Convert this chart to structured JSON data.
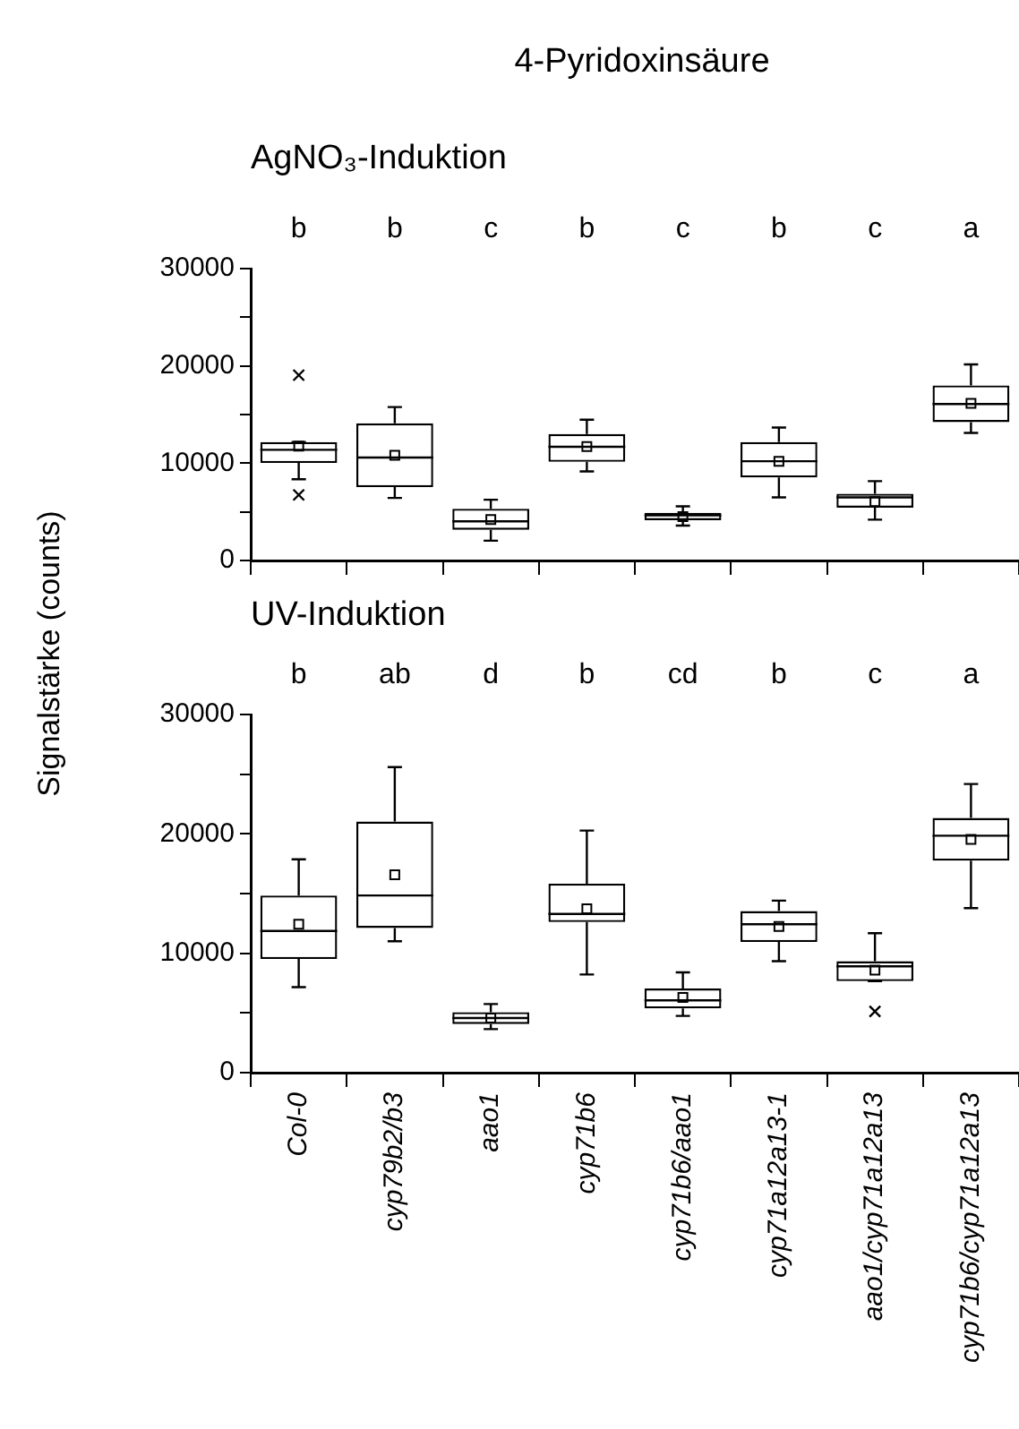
{
  "chart_data": [
    {
      "type": "box",
      "title": "4-Pyridoxinsäure",
      "subtitle": "AgNO₃-Induktion",
      "ylabel": "Signalstärke (counts)",
      "categories": [
        null,
        null,
        null,
        null,
        null,
        null,
        null,
        null
      ],
      "tick_labels": "y",
      "grid": false,
      "legend": false,
      "ylim": [
        0,
        30000
      ],
      "yticks": [
        0,
        {
          "value": 5000,
          "label": null
        },
        10000,
        {
          "value": 15000,
          "label": null
        },
        20000,
        {
          "value": 25000,
          "label": null
        },
        30000
      ],
      "boxes": [
        {
          "low": 8350,
          "q1": 10020,
          "median": 11380,
          "q3": 12180,
          "high": 12180,
          "mean": 11750,
          "outliers": [
            19050,
            6740
          ]
        },
        {
          "low": 6430,
          "q1": 7540,
          "median": 10580,
          "q3": 14100,
          "high": 15770,
          "mean": 10820
        },
        {
          "low": 2040,
          "q1": 3150,
          "median": 4020,
          "q3": 5320,
          "high": 6250,
          "mean": 4200
        },
        {
          "low": 9150,
          "q1": 10140,
          "median": 11690,
          "q3": 12990,
          "high": 14470,
          "mean": 11700
        },
        {
          "low": 3590,
          "q1": 4140,
          "median": 4640,
          "q3": 4890,
          "high": 5570,
          "mean": 4510
        },
        {
          "low": 6490,
          "q1": 8530,
          "median": 10200,
          "q3": 12180,
          "high": 13670,
          "mean": 10200
        },
        {
          "low": 4200,
          "q1": 5440,
          "median": 6490,
          "q3": 6860,
          "high": 8160,
          "mean": 6060
        },
        {
          "low": 13110,
          "q1": 14220,
          "median": 16080,
          "q3": 18000,
          "high": 20160,
          "mean": 16140
        }
      ],
      "annotations": [
        "b",
        "b",
        "c",
        "b",
        "c",
        "b",
        "c",
        "a"
      ]
    },
    {
      "type": "box",
      "title": "UV-Induktion",
      "categories": [
        "Col-0",
        "cyp79b2/b3",
        "aao1",
        "cyp71b6",
        "cyp71b6/aao1",
        "cyp71a12a13-1",
        "aao1/cyp71a12a13",
        "cyp71b6/cyp71a12a13"
      ],
      "grid": false,
      "legend": false,
      "ylim": [
        0,
        30000
      ],
      "yticks": [
        0,
        {
          "value": 5000,
          "label": null
        },
        10000,
        {
          "value": 15000,
          "label": null
        },
        20000,
        {
          "value": 25000,
          "label": null
        },
        30000
      ],
      "boxes": [
        {
          "low": 7170,
          "q1": 9520,
          "median": 11870,
          "q3": 14840,
          "high": 17870,
          "mean": 12430
        },
        {
          "low": 11010,
          "q1": 12120,
          "median": 14840,
          "q3": 21030,
          "high": 25600,
          "mean": 16570
        },
        {
          "low": 3650,
          "q1": 4080,
          "median": 4580,
          "q3": 5070,
          "high": 5750,
          "mean": 4580
        },
        {
          "low": 8230,
          "q1": 12620,
          "median": 13300,
          "q3": 15830,
          "high": 20280,
          "mean": 13730
        },
        {
          "low": 4760,
          "q1": 5380,
          "median": 6060,
          "q3": 7050,
          "high": 8410,
          "mean": 6310
        },
        {
          "low": 9340,
          "q1": 10950,
          "median": 12430,
          "q3": 13540,
          "high": 14410,
          "mean": 12240
        },
        {
          "low": 7670,
          "q1": 7670,
          "median": 8910,
          "q3": 9340,
          "high": 11690,
          "mean": 8600,
          "outliers": [
            5130
          ]
        },
        {
          "low": 13790,
          "q1": 17750,
          "median": 19850,
          "q3": 21340,
          "high": 24180,
          "mean": 19540
        }
      ],
      "annotations": [
        "b",
        "ab",
        "d",
        "b",
        "cd",
        "b",
        "c",
        "a"
      ]
    }
  ]
}
